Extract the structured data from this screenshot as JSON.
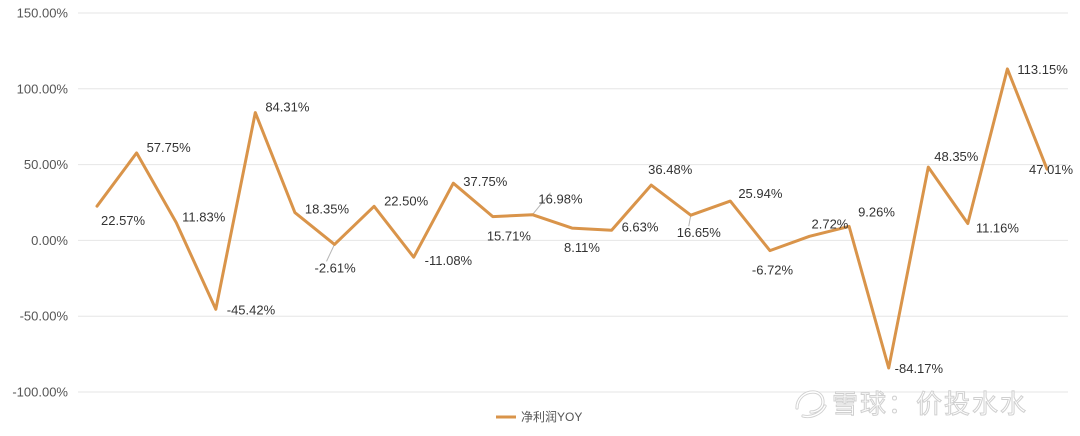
{
  "chart_data": {
    "type": "line",
    "title": "",
    "xlabel": "",
    "ylabel": "",
    "ylim": [
      -100,
      150
    ],
    "y_ticks": [
      150,
      100,
      50,
      0,
      -50,
      -100
    ],
    "y_tick_labels": [
      "150.00%",
      "100.00%",
      "50.00%",
      "0.00%",
      "-50.00%",
      "-100.00%"
    ],
    "grid": true,
    "legend_position": "bottom-center",
    "series": [
      {
        "name": "净利润YOY",
        "color": "#D9944A",
        "values": [
          22.57,
          57.75,
          11.83,
          -45.42,
          84.31,
          18.35,
          -2.61,
          22.5,
          -11.08,
          37.75,
          15.71,
          16.98,
          8.11,
          6.63,
          36.48,
          16.65,
          25.94,
          -6.72,
          2.72,
          9.26,
          -84.17,
          48.35,
          11.16,
          113.15,
          47.01
        ],
        "labels": [
          "22.57%",
          "57.75%",
          "11.83%",
          "-45.42%",
          "84.31%",
          "18.35%",
          "-2.61%",
          "22.50%",
          "-11.08%",
          "37.75%",
          "15.71%",
          "16.98%",
          "8.11%",
          "6.63%",
          "36.48%",
          "16.65%",
          "25.94%",
          "-6.72%",
          "2.72%",
          "9.26%",
          "-84.17%",
          "48.35%",
          "11.16%",
          "113.15%",
          "47.01%"
        ]
      }
    ]
  },
  "watermark": {
    "icon": "snowball-icon",
    "text": "雪球：价投水水"
  }
}
